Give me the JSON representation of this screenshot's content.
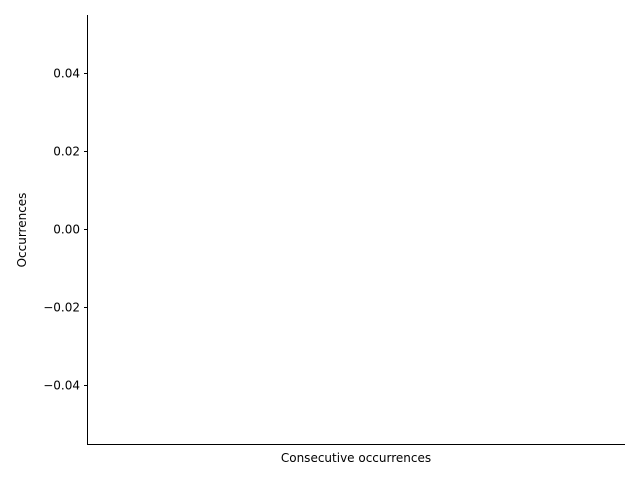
{
  "chart_data": {
    "type": "bar",
    "title": "",
    "xlabel": "Consecutive occurrences",
    "ylabel": "Occurrences",
    "categories": [],
    "series": [],
    "ylim": [
      -0.055,
      0.055
    ],
    "y_ticks": [
      0.04,
      0.02,
      0.0,
      -0.02,
      -0.04
    ],
    "y_tick_labels": [
      "0.04",
      "0.02",
      "0.00",
      "−0.02",
      "−0.04"
    ],
    "x_ticks": [],
    "grid": false,
    "legend": "none",
    "spines": [
      "left",
      "bottom"
    ],
    "colors": {
      "axis": "#000000",
      "background": "#ffffff"
    }
  }
}
